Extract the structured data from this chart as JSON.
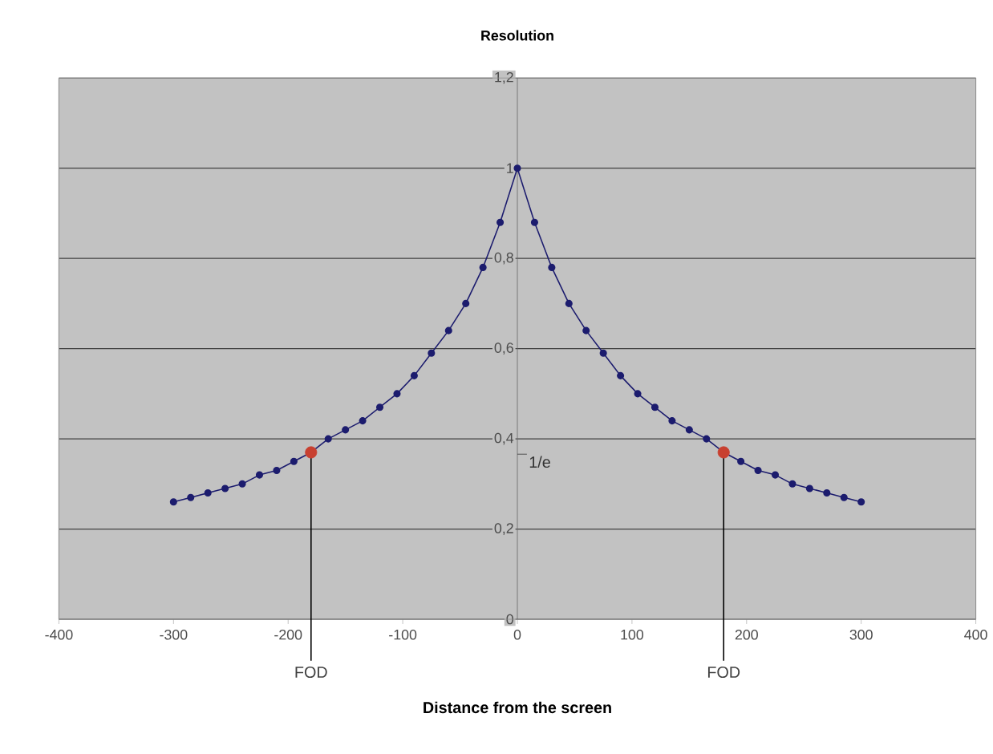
{
  "chart_data": {
    "type": "line",
    "title": "Resolution",
    "xlabel": "Distance from the screen",
    "xlim": [
      -400,
      400
    ],
    "xticks": [
      -400,
      -300,
      -200,
      -100,
      0,
      100,
      200,
      300,
      400
    ],
    "ylim": [
      0,
      1.2
    ],
    "yticks": [
      0,
      {
        "value": 0.2,
        "label": "0,2"
      },
      {
        "value": 0.4,
        "label": "0,4"
      },
      {
        "value": 0.6,
        "label": "0,6"
      },
      {
        "value": 0.8,
        "label": "0,8"
      },
      1,
      {
        "value": 1.2,
        "label": "1,2"
      }
    ],
    "grid": "y",
    "marker": "circle",
    "series": [
      {
        "color": "#1c1c6e",
        "x": [
          -300,
          -285,
          -270,
          -255,
          -240,
          -225,
          -210,
          -195,
          -180,
          -165,
          -150,
          -135,
          -120,
          -105,
          -90,
          -75,
          -60,
          -45,
          -30,
          -15,
          0,
          15,
          30,
          45,
          60,
          75,
          90,
          105,
          120,
          135,
          150,
          165,
          180,
          195,
          210,
          225,
          240,
          255,
          270,
          285,
          300
        ],
        "values": [
          0.26,
          0.27,
          0.28,
          0.29,
          0.3,
          0.32,
          0.33,
          0.35,
          0.37,
          0.4,
          0.42,
          0.44,
          0.47,
          0.5,
          0.54,
          0.59,
          0.64,
          0.7,
          0.78,
          0.88,
          1,
          0.88,
          0.78,
          0.7,
          0.64,
          0.59,
          0.54,
          0.5,
          0.47,
          0.44,
          0.42,
          0.4,
          0.37,
          0.35,
          0.33,
          0.32,
          0.3,
          0.29,
          0.28,
          0.27,
          0.26
        ]
      },
      {
        "type": "scatter",
        "color": "#c84030",
        "x": [
          -180,
          180
        ],
        "values": [
          0.37,
          0.37
        ]
      }
    ],
    "ref_lines": [
      {
        "axis": "x",
        "value": -180,
        "label": "FOD"
      },
      {
        "axis": "x",
        "value": 180,
        "label": "FOD"
      }
    ],
    "annotations": [
      "1/e"
    ]
  }
}
